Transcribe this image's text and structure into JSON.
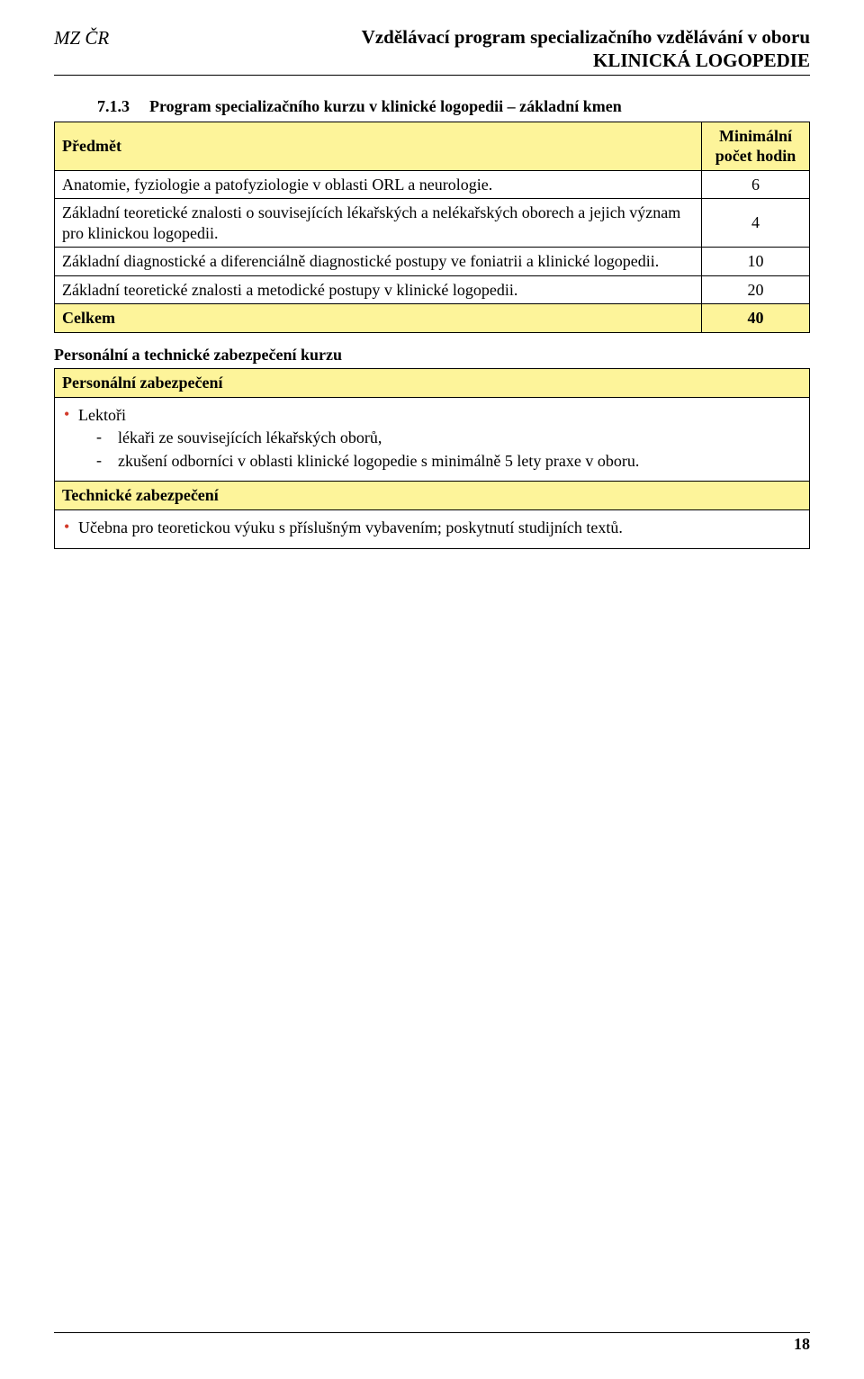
{
  "colors": {
    "highlight_bg": "#fdf49a",
    "border": "#000000",
    "bullet": "#d23a2a",
    "text": "#000000",
    "page_bg": "#ffffff"
  },
  "typography": {
    "base_family": "Times New Roman",
    "body_size_pt": 14,
    "header_size_pt": 16,
    "line_height": 1.25
  },
  "header": {
    "left": "MZ ČR",
    "right_line1": "Vzdělávací program specializačního vzdělávání v oboru",
    "right_line2": "KLINICKÁ LOGOPEDIE"
  },
  "section": {
    "number": "7.1.3",
    "title": "Program specializačního kurzu v klinické logopedii – základní kmen"
  },
  "course_table": {
    "col_subject": "Předmět",
    "col_hours_line1": "Minimální",
    "col_hours_line2": "počet hodin",
    "rows": [
      {
        "subject": "Anatomie, fyziologie a patofyziologie v oblasti ORL a neurologie.",
        "hours": "6"
      },
      {
        "subject": "Základní teoretické znalosti o souvisejících lékařských a nelékařských oborech a jejich význam pro klinickou logopedii.",
        "hours": "4"
      },
      {
        "subject": "Základní diagnostické a diferenciálně diagnostické postupy ve foniatrii a klinické logopedii.",
        "hours": "10"
      },
      {
        "subject": "Základní teoretické znalosti a metodické postupy v klinické logopedii.",
        "hours": "20"
      }
    ],
    "total_label": "Celkem",
    "total_value": "40"
  },
  "staffing_heading": "Personální a technické zabezpečení kurzu",
  "personnel_box": {
    "title": "Personální zabezpečení",
    "bullet": "Lektoři",
    "sub1": "lékaři ze souvisejících lékařských oborů,",
    "sub2": "zkušení odborníci v oblasti klinické logopedie s minimálně 5 lety praxe v oboru."
  },
  "technical_box": {
    "title": "Technické zabezpečení",
    "bullet": "Učebna pro teoretickou výuku s příslušným vybavením; poskytnutí studijních textů."
  },
  "page_number": "18"
}
